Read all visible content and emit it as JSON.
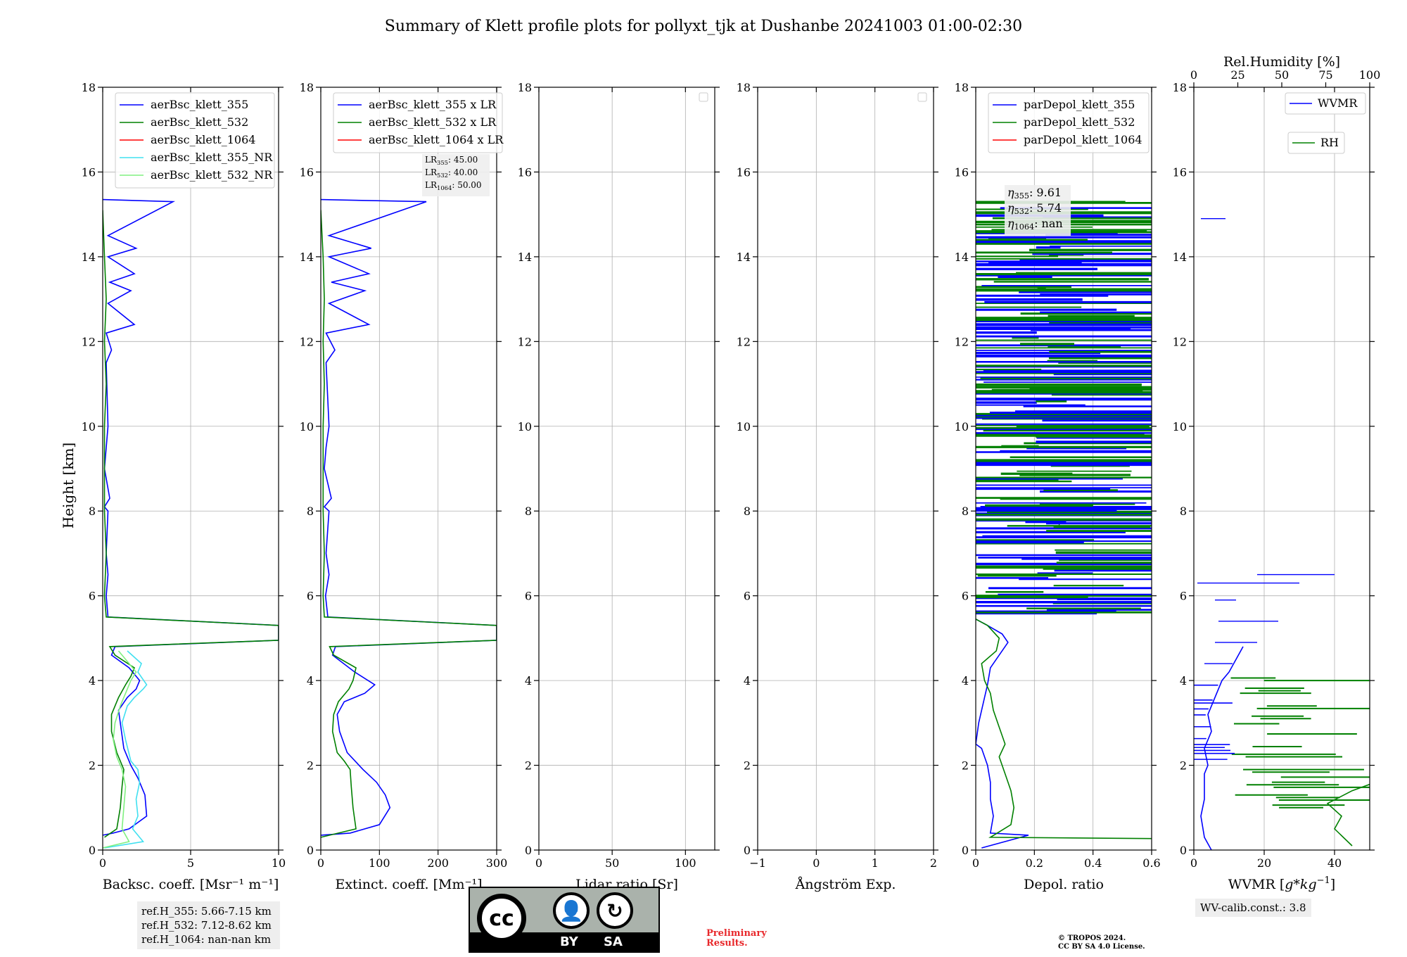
{
  "title": "Summary of Klett profile plots for pollyxt_tjk at Dushanbe 20241003 01:00-02:30",
  "ylabel": "Height [km]",
  "footer": {
    "ref_lines": [
      "ref.H_355: 5.66-7.15 km",
      "ref.H_532: 7.12-8.62 km",
      "ref.H_1064: nan-nan km"
    ],
    "wv_calib": "WV-calib.const.: 3.8",
    "preliminary": [
      "Preliminary",
      "Results."
    ],
    "copyright": [
      "© TROPOS 2024.",
      "CC BY SA 4.0 License."
    ],
    "license_badge": {
      "by": "BY",
      "sa": "SA",
      "cc": "cc",
      "icon": "cc-by-sa-license-icon"
    }
  },
  "colors": {
    "blue": "#0000ff",
    "green": "#008000",
    "red": "#ff0000",
    "cyan": "#40e0f0",
    "lightgreen": "#80f080"
  },
  "chart_data": [
    {
      "type": "line",
      "xlabel": "Backsc. coeff. [Msr⁻¹ m⁻¹]",
      "xlim": [
        0,
        10
      ],
      "ylim": [
        0,
        18
      ],
      "xticks": [
        0,
        5,
        10
      ],
      "yticks": [
        0,
        2,
        4,
        6,
        8,
        10,
        12,
        14,
        16,
        18
      ],
      "grid": true,
      "legend_placement": "top-center",
      "series": [
        {
          "name": "aerBsc_klett_355",
          "color": "#0000ff",
          "x": [
            0.0,
            0.6,
            1.5,
            2.5,
            2.4,
            2.0,
            1.6,
            1.2,
            1.0,
            0.9,
            1.4,
            1.9,
            2.1,
            1.5,
            0.5,
            0.7,
            10,
            10,
            0.3,
            0.2,
            0.3,
            0.2,
            0.3,
            0.1,
            0.4,
            0.1,
            0.2,
            0.3,
            0.2,
            0.5,
            0.2,
            1.8,
            0.3,
            1.6,
            0.4,
            1.8,
            0.3,
            1.9,
            0.3,
            4.0,
            0.0
          ],
          "y": [
            0.35,
            0.4,
            0.5,
            0.8,
            1.3,
            1.7,
            2.0,
            2.4,
            3.0,
            3.3,
            3.6,
            3.8,
            4.0,
            4.3,
            4.6,
            4.8,
            4.95,
            5.3,
            5.5,
            6.0,
            6.5,
            7.0,
            8.0,
            8.1,
            8.3,
            9.0,
            9.5,
            10.0,
            11.5,
            11.8,
            12.2,
            12.4,
            12.9,
            13.2,
            13.4,
            13.6,
            14.0,
            14.2,
            14.5,
            15.3,
            15.35
          ]
        },
        {
          "name": "aerBsc_klett_532",
          "color": "#008000",
          "x": [
            0.1,
            0.8,
            1.0,
            1.1,
            1.2,
            1.0,
            0.8,
            0.5,
            0.5,
            0.9,
            1.3,
            1.6,
            1.8,
            0.7,
            0.4,
            10,
            10,
            0.2,
            0.1,
            0.2,
            0.1,
            0.1,
            0.1,
            0.2,
            0.1,
            0.2,
            0.1,
            0.0
          ],
          "y": [
            0.3,
            0.5,
            1.0,
            1.5,
            1.9,
            2.1,
            2.3,
            2.8,
            3.2,
            3.6,
            3.9,
            4.1,
            4.3,
            4.6,
            4.8,
            4.95,
            5.3,
            5.5,
            6.0,
            7.0,
            8.0,
            9.0,
            10.0,
            11.0,
            12.0,
            13.0,
            14.0,
            15.1
          ]
        },
        {
          "name": "aerBsc_klett_1064",
          "color": "#ff0000",
          "x": [],
          "y": []
        },
        {
          "name": "aerBsc_klett_355_NR",
          "color": "#40e0f0",
          "x": [
            0.1,
            2.3,
            1.7,
            2.0,
            1.9,
            2.1,
            2.0,
            1.6,
            1.3,
            1.1,
            1.4,
            1.8,
            2.3,
            2.5,
            2.0,
            2.2,
            1.4
          ],
          "y": [
            0.05,
            0.2,
            0.5,
            0.8,
            1.2,
            1.6,
            1.9,
            2.1,
            2.6,
            3.0,
            3.4,
            3.6,
            3.8,
            3.9,
            4.2,
            4.4,
            4.7
          ]
        },
        {
          "name": "aerBsc_klett_532_NR",
          "color": "#80f080",
          "x": [
            0.0,
            1.5,
            1.1,
            1.2,
            1.3,
            1.1,
            0.8,
            0.6,
            0.7,
            1.0,
            1.4,
            1.6,
            1.9,
            1.3,
            0.9
          ],
          "y": [
            0.05,
            0.2,
            0.5,
            1.0,
            1.5,
            1.9,
            2.2,
            2.6,
            3.0,
            3.4,
            3.8,
            4.0,
            4.2,
            4.5,
            4.7
          ]
        }
      ]
    },
    {
      "type": "line",
      "xlabel": "Extinct. coeff. [Mm⁻¹]",
      "xlim": [
        0,
        300
      ],
      "ylim": [
        0,
        18
      ],
      "xticks": [
        0,
        100,
        200,
        300
      ],
      "yticks": [
        0,
        2,
        4,
        6,
        8,
        10,
        12,
        14,
        16,
        18
      ],
      "grid": true,
      "legend_placement": "top-center",
      "annotation": [
        {
          "label": "LR",
          "sub": "355",
          "value": ": 45.00"
        },
        {
          "label": "LR",
          "sub": "532",
          "value": ": 40.00"
        },
        {
          "label": "LR",
          "sub": "1064",
          "value": ": 50.00"
        }
      ],
      "series": [
        {
          "name": "aerBsc_klett_355 x LR",
          "color": "#0000ff",
          "x": [
            0,
            50,
            100,
            118,
            110,
            95,
            72,
            45,
            32,
            28,
            40,
            75,
            92,
            58,
            20,
            25,
            300,
            300,
            12,
            8,
            14,
            9,
            14,
            6,
            18,
            6,
            9,
            14,
            9,
            24,
            9,
            82,
            14,
            75,
            18,
            82,
            14,
            86,
            14,
            180,
            0
          ],
          "y": [
            0.35,
            0.4,
            0.6,
            1.0,
            1.3,
            1.6,
            1.9,
            2.3,
            2.8,
            3.2,
            3.5,
            3.7,
            3.9,
            4.2,
            4.6,
            4.8,
            4.95,
            5.3,
            5.5,
            6.0,
            6.5,
            7.0,
            8.0,
            8.1,
            8.3,
            9.0,
            9.5,
            10.0,
            11.5,
            11.8,
            12.2,
            12.4,
            12.9,
            13.2,
            13.4,
            13.6,
            14.0,
            14.2,
            14.5,
            15.3,
            15.35
          ]
        },
        {
          "name": "aerBsc_klett_532 x LR",
          "color": "#008000",
          "x": [
            0,
            60,
            55,
            52,
            50,
            40,
            28,
            20,
            22,
            30,
            48,
            55,
            60,
            22,
            15,
            300,
            300,
            6,
            4,
            6,
            4,
            4,
            4,
            6,
            4,
            6,
            4,
            0
          ],
          "y": [
            0.3,
            0.5,
            1.0,
            1.5,
            1.9,
            2.1,
            2.3,
            2.8,
            3.2,
            3.5,
            3.8,
            4.0,
            4.3,
            4.6,
            4.8,
            4.95,
            5.3,
            5.5,
            6.0,
            7.0,
            8.0,
            9.0,
            10.0,
            11.0,
            12.0,
            13.0,
            14.0,
            15.1
          ]
        },
        {
          "name": "aerBsc_klett_1064 x LR",
          "color": "#ff0000",
          "x": [],
          "y": []
        }
      ]
    },
    {
      "type": "line",
      "xlabel": "Lidar ratio [Sr]",
      "xlim": [
        0,
        120
      ],
      "ylim": [
        0,
        18
      ],
      "xticks": [
        0,
        50,
        100
      ],
      "yticks": [
        0,
        2,
        4,
        6,
        8,
        10,
        12,
        14,
        16,
        18
      ],
      "grid": true,
      "legend_placement": "top-right",
      "series": []
    },
    {
      "type": "line",
      "xlabel": "Ångström Exp.",
      "xlim": [
        -1,
        2
      ],
      "ylim": [
        0,
        18
      ],
      "xticks": [
        -1,
        0,
        1,
        2
      ],
      "yticks": [
        0,
        2,
        4,
        6,
        8,
        10,
        12,
        14,
        16,
        18
      ],
      "grid": true,
      "legend_placement": "top-right",
      "series": []
    },
    {
      "type": "line",
      "xlabel": "Depol. ratio",
      "xlim": [
        0,
        0.6
      ],
      "ylim": [
        0,
        18
      ],
      "xticks": [
        0.0,
        0.2,
        0.4,
        0.6
      ],
      "yticks": [
        0,
        2,
        4,
        6,
        8,
        10,
        12,
        14,
        16,
        18
      ],
      "grid": true,
      "legend_placement": "top-right",
      "annotation": [
        {
          "label": "η",
          "sub": "355",
          "value": ": 9.61"
        },
        {
          "label": "η",
          "sub": "532",
          "value": ": 5.74"
        },
        {
          "label": "η",
          "sub": "1064",
          "value": ": nan"
        }
      ],
      "series": [
        {
          "name": "parDepol_klett_355",
          "color": "#0000ff",
          "x": [
            0.02,
            0.18,
            0.05,
            0.06,
            0.05,
            0.05,
            0.04,
            0.02,
            0.0,
            0.01,
            0.03,
            0.04,
            0.05,
            0.11,
            0.09,
            0.04,
            0.0
          ],
          "y": [
            0.05,
            0.35,
            0.4,
            0.8,
            1.2,
            1.6,
            2.0,
            2.4,
            2.5,
            3.0,
            3.6,
            3.9,
            4.3,
            4.9,
            5.1,
            5.3,
            5.45
          ]
        },
        {
          "name": "parDepol_klett_532",
          "color": "#008000",
          "x": [
            0.6,
            0.05,
            0.12,
            0.13,
            0.12,
            0.1,
            0.08,
            0.1,
            0.08,
            0.06,
            0.05,
            0.03,
            0.02,
            0.07,
            0.08,
            0.04,
            0.0
          ],
          "y": [
            0.27,
            0.3,
            0.6,
            1.0,
            1.4,
            1.8,
            2.2,
            2.5,
            2.9,
            3.3,
            3.7,
            4.0,
            4.4,
            4.7,
            5.0,
            5.3,
            5.45
          ]
        },
        {
          "name": "parDepol_klett_1064",
          "color": "#ff0000",
          "x": [],
          "y": []
        }
      ],
      "noise_band": {
        "ymin": 5.55,
        "ymax": 15.3,
        "note": "dense horizontal noise lines, x from 0 to 0.6"
      }
    },
    {
      "type": "line",
      "xlabel": "WVMR [$g*kg^{-1}$]",
      "xlim": [
        0,
        50
      ],
      "ylim": [
        0,
        18
      ],
      "xticks": [
        0,
        20,
        40
      ],
      "yticks": [
        0,
        2,
        4,
        6,
        8,
        10,
        12,
        14,
        16,
        18
      ],
      "x2label": "Rel.Humidity [%]",
      "x2lim": [
        0,
        100
      ],
      "x2ticks": [
        0,
        25,
        50,
        75,
        100
      ],
      "grid": true,
      "legend_placement": "top-right",
      "series": [
        {
          "name": "WVMR",
          "color": "#0000ff",
          "x": [
            5,
            3,
            2,
            3,
            3,
            3,
            4,
            3,
            5,
            4,
            6,
            8,
            10,
            12,
            14
          ],
          "y": [
            0.0,
            0.3,
            0.8,
            1.2,
            1.6,
            1.8,
            2.0,
            2.4,
            2.8,
            3.2,
            3.6,
            4.0,
            4.2,
            4.5,
            4.8
          ]
        },
        {
          "name": "RH",
          "color": "#008000",
          "x": [
            45,
            40,
            42,
            38,
            45,
            55,
            60,
            70,
            75,
            90,
            100,
            100
          ],
          "y": [
            0.1,
            0.5,
            0.8,
            1.1,
            1.4,
            1.7,
            1.9,
            2.1,
            2.5,
            3.0,
            3.5,
            4.0
          ]
        }
      ],
      "extra_segments": [
        {
          "y": 6.5,
          "x": [
            18,
            40
          ]
        },
        {
          "y": 6.3,
          "x": [
            1,
            30
          ]
        },
        {
          "y": 5.9,
          "x": [
            6,
            12
          ]
        },
        {
          "y": 5.4,
          "x": [
            7,
            24
          ]
        },
        {
          "y": 4.9,
          "x": [
            6,
            18
          ]
        },
        {
          "y": 4.4,
          "x": [
            3,
            11
          ]
        },
        {
          "y": 14.9,
          "x": [
            2,
            9
          ]
        }
      ]
    }
  ]
}
